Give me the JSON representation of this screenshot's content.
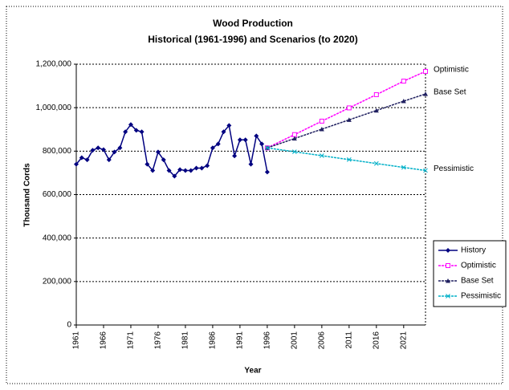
{
  "chart_data": {
    "type": "line",
    "title": "Wood Production",
    "subtitle": "Historical (1961-1996) and Scenarios (to 2020)",
    "x_label": "Year",
    "y_label": "Thousand Cords",
    "xlim": [
      1961,
      2025
    ],
    "xticks": [
      1961,
      1966,
      1971,
      1976,
      1981,
      1986,
      1991,
      1996,
      2001,
      2006,
      2011,
      2016,
      2021
    ],
    "ylim": [
      0,
      1200000
    ],
    "yticks": [
      0,
      {
        "value": 200000,
        "label": "200,000"
      },
      {
        "value": 400000,
        "label": "400,000"
      },
      {
        "value": 600000,
        "label": "600,000"
      },
      {
        "value": 800000,
        "label": "800,000"
      },
      {
        "value": 1000000,
        "label": "1,000,000"
      },
      {
        "value": 1200000,
        "label": "1,200,000"
      }
    ],
    "grid": true,
    "legend": "right",
    "series": [
      {
        "name": "History",
        "color": "#000080",
        "marker": "diamond",
        "x": [
          1961,
          1962,
          1963,
          1964,
          1965,
          1966,
          1967,
          1968,
          1969,
          1970,
          1971,
          1972,
          1973,
          1974,
          1975,
          1976,
          1977,
          1978,
          1979,
          1980,
          1981,
          1982,
          1983,
          1984,
          1985,
          1986,
          1987,
          1988,
          1989,
          1990,
          1991,
          1992,
          1993,
          1994,
          1995,
          1996
        ],
        "values": [
          740000,
          770000,
          760000,
          804000,
          815000,
          807000,
          760000,
          796000,
          815000,
          889000,
          922000,
          896000,
          889000,
          740000,
          711000,
          796000,
          760000,
          711000,
          685000,
          715000,
          711000,
          711000,
          722000,
          722000,
          733000,
          815000,
          833000,
          889000,
          918000,
          778000,
          852000,
          852000,
          740000,
          870000,
          833000,
          704000
        ]
      },
      {
        "name": "Optimistic",
        "color": "#ff00ff",
        "marker": "square",
        "x": [
          1996,
          2001,
          2006,
          2011,
          2016,
          2021,
          2025
        ],
        "values": [
          815000,
          876000,
          938000,
          999000,
          1060000,
          1122000,
          1167000
        ]
      },
      {
        "name": "Base Set",
        "color": "#202060",
        "marker": "triangle",
        "x": [
          1996,
          2001,
          2006,
          2011,
          2016,
          2021,
          2025
        ],
        "values": [
          815000,
          858000,
          901000,
          944000,
          987000,
          1030000,
          1063000
        ]
      },
      {
        "name": "Pessimistic",
        "color": "#00b0c8",
        "marker": "x",
        "x": [
          1996,
          2001,
          2006,
          2011,
          2016,
          2021,
          2025
        ],
        "values": [
          815000,
          797000,
          779000,
          761000,
          743000,
          725000,
          711000
        ]
      }
    ]
  }
}
